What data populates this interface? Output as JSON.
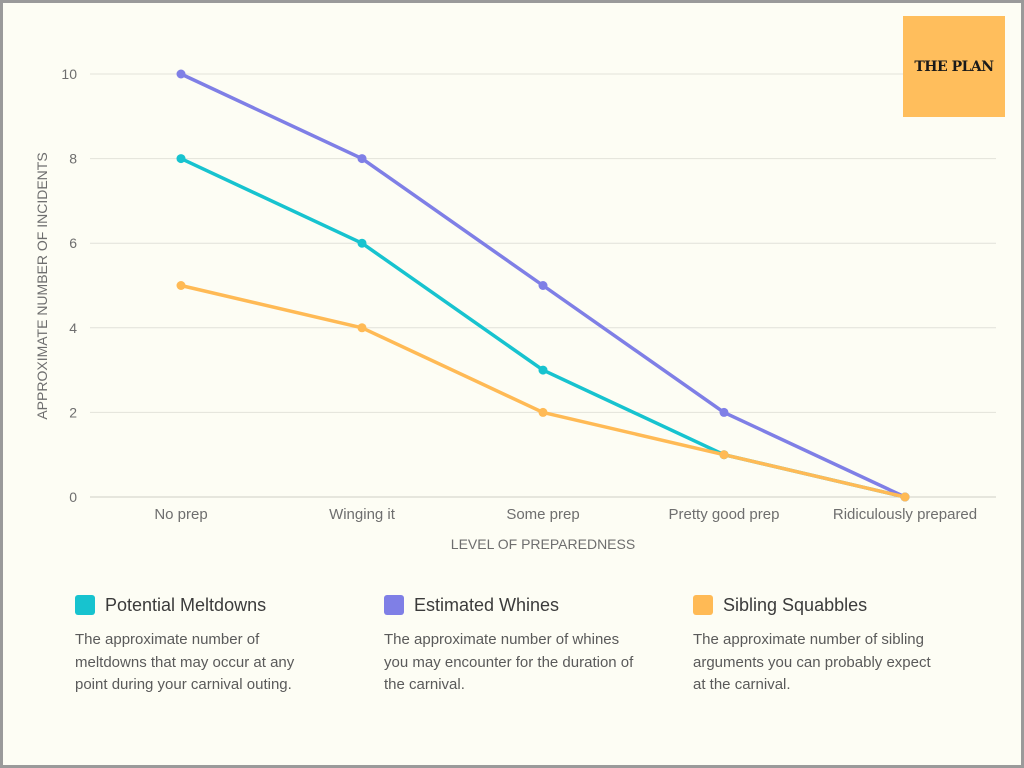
{
  "logo": {
    "text": "THE PLAN"
  },
  "colors": {
    "background": "#fdfdf4",
    "grid": "#e2e2da",
    "axis": "#cfcfc6",
    "text": "#6e6e6e",
    "logo_bg": "#ffbe5c"
  },
  "chart_data": {
    "type": "line",
    "xlabel": "LEVEL OF PREPAREDNESS",
    "ylabel": "APPROXIMATE NUMBER OF INCIDENTS",
    "categories": [
      "No prep",
      "Winging it",
      "Some prep",
      "Pretty good prep",
      "Ridiculously prepared"
    ],
    "ylim": [
      0,
      10
    ],
    "yticks": [
      "0",
      "2",
      "4",
      "6",
      "8",
      "10"
    ],
    "grid": true,
    "legend_position": "bottom",
    "series": [
      {
        "name": "Potential Meltdowns",
        "color": "#17c3cf",
        "values": [
          8,
          6,
          3,
          1,
          0
        ]
      },
      {
        "name": "Estimated Whines",
        "color": "#7f7fe6",
        "values": [
          10,
          8,
          5,
          2,
          0
        ]
      },
      {
        "name": "Sibling Squabbles",
        "color": "#ffba55",
        "values": [
          5,
          4,
          2,
          1,
          0
        ]
      }
    ]
  },
  "legend": [
    {
      "name": "Potential Meltdowns",
      "color": "#17c3cf",
      "description": "The approximate number of meltdowns that may occur at any point during your carnival outing."
    },
    {
      "name": "Estimated Whines",
      "color": "#7f7fe6",
      "description": "The approximate number of whines you may encounter for the duration of  the carnival."
    },
    {
      "name": "Sibling Squabbles",
      "color": "#ffba55",
      "description": "The approximate number of sibling arguments you can probably expect at the carnival."
    }
  ]
}
